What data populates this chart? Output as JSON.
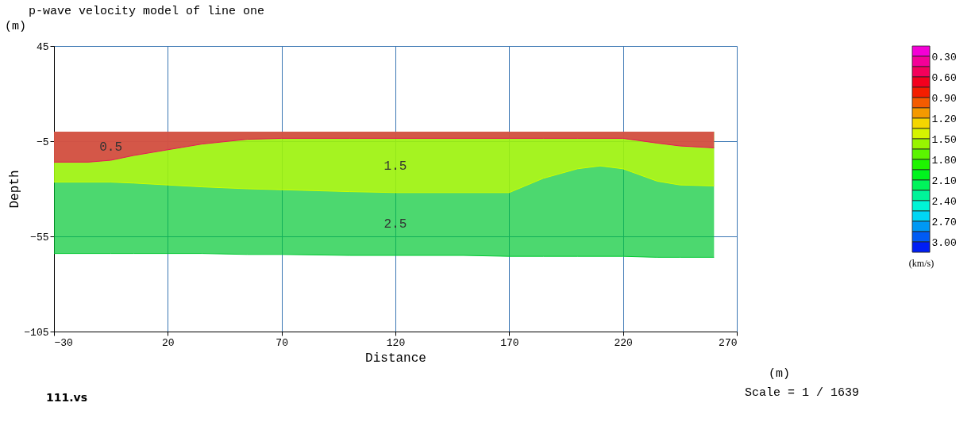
{
  "chart_data": {
    "type": "area",
    "title": "p-wave velocity model of line one",
    "xlabel": "Distance",
    "ylabel": "Depth",
    "clabel": "(km/s)",
    "x": [
      -30,
      -15,
      -5,
      5,
      20,
      35,
      55,
      70,
      100,
      120,
      150,
      170,
      185,
      200,
      210,
      220,
      235,
      245,
      260
    ],
    "series": [
      {
        "name": "2.5",
        "color": "#00c832",
        "values": [
          -64,
          -64,
          -64,
          -64,
          -64,
          -64,
          -64.5,
          -64.5,
          -65,
          -65,
          -65,
          -65.5,
          -65.5,
          -65.5,
          -65.5,
          -65.5,
          -66,
          -66,
          -66
        ]
      },
      {
        "name": "1.5",
        "color": "#ccff00",
        "values": [
          -26.5,
          -26.5,
          -26.5,
          -27,
          -28,
          -29,
          -30,
          -30.5,
          -31.5,
          -32,
          -32,
          -32,
          -24.5,
          -19.5,
          -18,
          -19.5,
          -26,
          -28,
          -28.5
        ]
      },
      {
        "name": "0.5",
        "color": "#e8145a",
        "values": [
          -16,
          -16,
          -15,
          -12.5,
          -9.5,
          -6.5,
          -4,
          -3.5,
          -3.5,
          -3.5,
          -3.5,
          -3.5,
          -3.5,
          -3.5,
          -3.5,
          -3.5,
          -6,
          -7.5,
          -8.5
        ]
      }
    ],
    "xlim": [
      -30,
      270
    ],
    "xticks": [
      -30,
      20,
      70,
      120,
      170,
      220,
      270
    ],
    "ylim": [
      -105,
      45
    ],
    "yticks": [
      -105,
      -55,
      -5,
      45
    ],
    "grid": true,
    "clim": [
      0.15,
      3.15
    ],
    "cticks": [
      {
        "value": 0.3,
        "label": "0.30"
      },
      {
        "value": 0.6,
        "label": "0.60"
      },
      {
        "value": 0.9,
        "label": "0.90"
      },
      {
        "value": 1.2,
        "label": "1.20"
      },
      {
        "value": 1.5,
        "label": "1.50"
      },
      {
        "value": 1.8,
        "label": "1.80"
      },
      {
        "value": 2.1,
        "label": "2.10"
      },
      {
        "value": 2.4,
        "label": "2.40"
      },
      {
        "value": 2.7,
        "label": "2.70"
      },
      {
        "value": 3.0,
        "label": "3.00"
      }
    ],
    "annotations": [
      "(m)",
      "(m)",
      "Scale = 1 / 1639",
      "111.vs"
    ]
  }
}
